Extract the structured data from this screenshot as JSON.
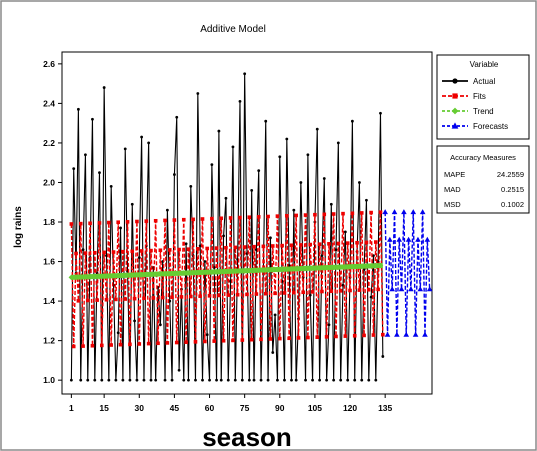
{
  "chart_data": {
    "type": "line",
    "title": "Additive Model",
    "xlabel": "season",
    "ylabel": "log rains",
    "xlim": [
      -3,
      155
    ],
    "ylim": [
      0.93,
      2.66
    ],
    "x_ticks": [
      1,
      15,
      30,
      45,
      60,
      75,
      90,
      105,
      120,
      135
    ],
    "y_ticks": [
      1.0,
      1.2,
      1.4,
      1.6,
      1.8,
      2.0,
      2.2,
      2.4,
      2.6
    ],
    "grid": false,
    "legend": {
      "title": "Variable",
      "placement": "right",
      "entries": [
        "Actual",
        "Fits",
        "Trend",
        "Forecasts"
      ]
    },
    "accuracy": {
      "title": "Accuracy Measures",
      "rows": [
        {
          "label": "MAPE",
          "value": "24.2559"
        },
        {
          "label": "MAD",
          "value": "0.2515"
        },
        {
          "label": "MSD",
          "value": "0.1002"
        }
      ]
    },
    "series": [
      {
        "name": "Actual",
        "color": "#000000",
        "marker": "circle",
        "x_start": 1,
        "values": [
          1.0,
          2.07,
          1.54,
          2.37,
          1.0,
          1.66,
          2.14,
          1.0,
          1.62,
          2.32,
          1.0,
          1.54,
          2.05,
          1.0,
          2.48,
          1.63,
          1.0,
          1.98,
          1.48,
          1.0,
          1.24,
          1.77,
          1.0,
          2.17,
          1.55,
          1.0,
          1.89,
          1.3,
          1.0,
          1.62,
          2.23,
          1.0,
          1.68,
          2.2,
          1.0,
          1.57,
          1.0,
          1.47,
          1.28,
          1.6,
          1.0,
          1.86,
          1.4,
          1.0,
          2.04,
          2.33,
          1.05,
          1.46,
          1.0,
          1.69,
          1.0,
          1.98,
          1.63,
          1.0,
          2.45,
          1.68,
          1.0,
          1.6,
          1.23,
          1.0,
          2.09,
          1.57,
          1.0,
          2.26,
          1.0,
          1.73,
          1.92,
          1.0,
          1.5,
          2.18,
          1.0,
          1.61,
          2.41,
          1.0,
          2.55,
          1.64,
          1.0,
          1.96,
          1.0,
          1.66,
          2.06,
          1.0,
          1.56,
          2.31,
          1.0,
          1.72,
          1.14,
          1.33,
          1.0,
          2.13,
          1.5,
          1.0,
          2.22,
          1.58,
          1.0,
          1.86,
          1.0,
          1.31,
          2.0,
          1.52,
          1.0,
          2.14,
          1.43,
          1.0,
          1.8,
          2.27,
          1.0,
          1.63,
          2.02,
          1.0,
          1.28,
          1.89,
          1.0,
          1.66,
          2.2,
          1.0,
          1.48,
          1.75,
          1.0,
          1.52,
          2.31,
          1.0,
          1.65,
          2.0,
          1.0,
          1.56,
          1.91,
          1.0,
          1.42,
          1.63,
          1.0,
          1.6,
          2.35,
          1.12
        ]
      },
      {
        "name": "Fits",
        "color": "#ee0000",
        "marker": "square",
        "x_start": 1,
        "period": 4,
        "seasonal": [
          0.27,
          -0.35,
          0.12,
          -0.12
        ],
        "values_from_trend": true
      },
      {
        "name": "Trend",
        "color": "#66cc33",
        "marker": "diamond",
        "x": [
          1,
          134
        ],
        "values": [
          1.52,
          1.58
        ]
      },
      {
        "name": "Forecasts",
        "color": "#0000ee",
        "marker": "triangle",
        "x_start": 135,
        "values": [
          1.85,
          1.23,
          1.71,
          1.46,
          1.85,
          1.23,
          1.71,
          1.46,
          1.85,
          1.23,
          1.71,
          1.46,
          1.85,
          1.23,
          1.71,
          1.46,
          1.85,
          1.23,
          1.71,
          1.46
        ]
      }
    ]
  }
}
